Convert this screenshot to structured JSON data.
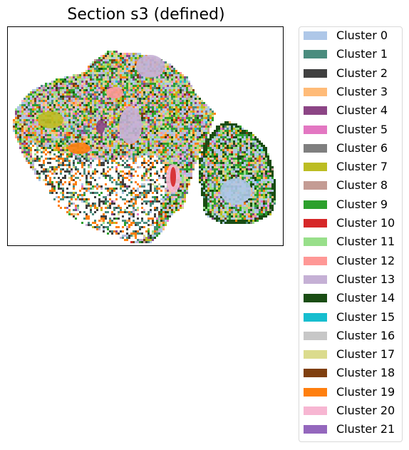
{
  "chart_data": {
    "type": "heatmap",
    "title": "Section s3 (defined)",
    "xlabel": "",
    "ylabel": "",
    "axis_ticks": false,
    "grid": false,
    "legend": {
      "placement": "outside-right",
      "entries": [
        {
          "name": "Cluster 0",
          "color": "#aec7e8"
        },
        {
          "name": "Cluster 1",
          "color": "#4a8c7e"
        },
        {
          "name": "Cluster 2",
          "color": "#404040"
        },
        {
          "name": "Cluster 3",
          "color": "#ffbb78"
        },
        {
          "name": "Cluster 4",
          "color": "#8c4585"
        },
        {
          "name": "Cluster 5",
          "color": "#e377c2"
        },
        {
          "name": "Cluster 6",
          "color": "#7f7f7f"
        },
        {
          "name": "Cluster 7",
          "color": "#bcbd22"
        },
        {
          "name": "Cluster 8",
          "color": "#c49c94"
        },
        {
          "name": "Cluster 9",
          "color": "#2ca02c"
        },
        {
          "name": "Cluster 10",
          "color": "#d62728"
        },
        {
          "name": "Cluster 11",
          "color": "#98df8a"
        },
        {
          "name": "Cluster 12",
          "color": "#ff9896"
        },
        {
          "name": "Cluster 13",
          "color": "#c5b0d5"
        },
        {
          "name": "Cluster 14",
          "color": "#1a4d14"
        },
        {
          "name": "Cluster 15",
          "color": "#17becf"
        },
        {
          "name": "Cluster 16",
          "color": "#c7c7c7"
        },
        {
          "name": "Cluster 17",
          "color": "#dbdb8d"
        },
        {
          "name": "Cluster 18",
          "color": "#7f3f0f"
        },
        {
          "name": "Cluster 19",
          "color": "#ff7f0e"
        },
        {
          "name": "Cluster 20",
          "color": "#f7b6d2"
        },
        {
          "name": "Cluster 21",
          "color": "#9467bd"
        }
      ]
    }
  }
}
